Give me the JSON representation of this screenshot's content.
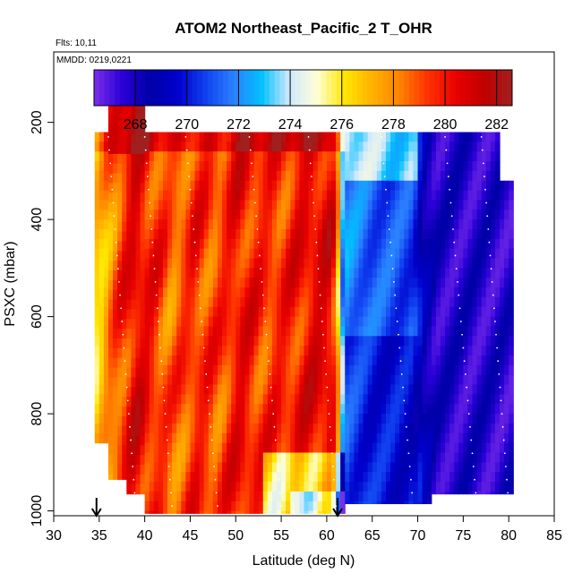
{
  "chart_data": {
    "type": "heatmap",
    "title": "ATOM2 Northeast_Pacific_2 T_OHR",
    "flights_note": "Flts: 10,11",
    "date_note": "MMDD: 0219,0221",
    "xlabel": "Latitude (deg N)",
    "ylabel": "PSXC (mbar)",
    "xlim": [
      30,
      85
    ],
    "ylim": [
      1010,
      55
    ],
    "x_ticks": [
      "30",
      "35",
      "40",
      "45",
      "50",
      "55",
      "60",
      "65",
      "70",
      "75",
      "80",
      "85"
    ],
    "y_ticks": [
      "200",
      "400",
      "600",
      "800",
      "1000"
    ],
    "colorbar": {
      "range": [
        266.4,
        282.6
      ],
      "ticks": [
        "268",
        "270",
        "272",
        "274",
        "276",
        "278",
        "280",
        "282"
      ],
      "colors": [
        "#7b2fe8",
        "#2b00d8",
        "#0000a8",
        "#0000cc",
        "#1040f0",
        "#2a80ff",
        "#00c0ff",
        "#cfe8ff",
        "#ffffd6",
        "#ffe600",
        "#ffb000",
        "#ff8000",
        "#ff3000",
        "#e80000",
        "#c00000",
        "#a02020"
      ]
    },
    "markers": [
      {
        "x": 34.7,
        "label": "down-arrow"
      },
      {
        "x": 61.2,
        "label": "down-arrow"
      }
    ],
    "colors": {
      "low": "#0000a8",
      "mid": "#ffffd6",
      "high": "#e80000",
      "track": "#ffffff"
    }
  }
}
